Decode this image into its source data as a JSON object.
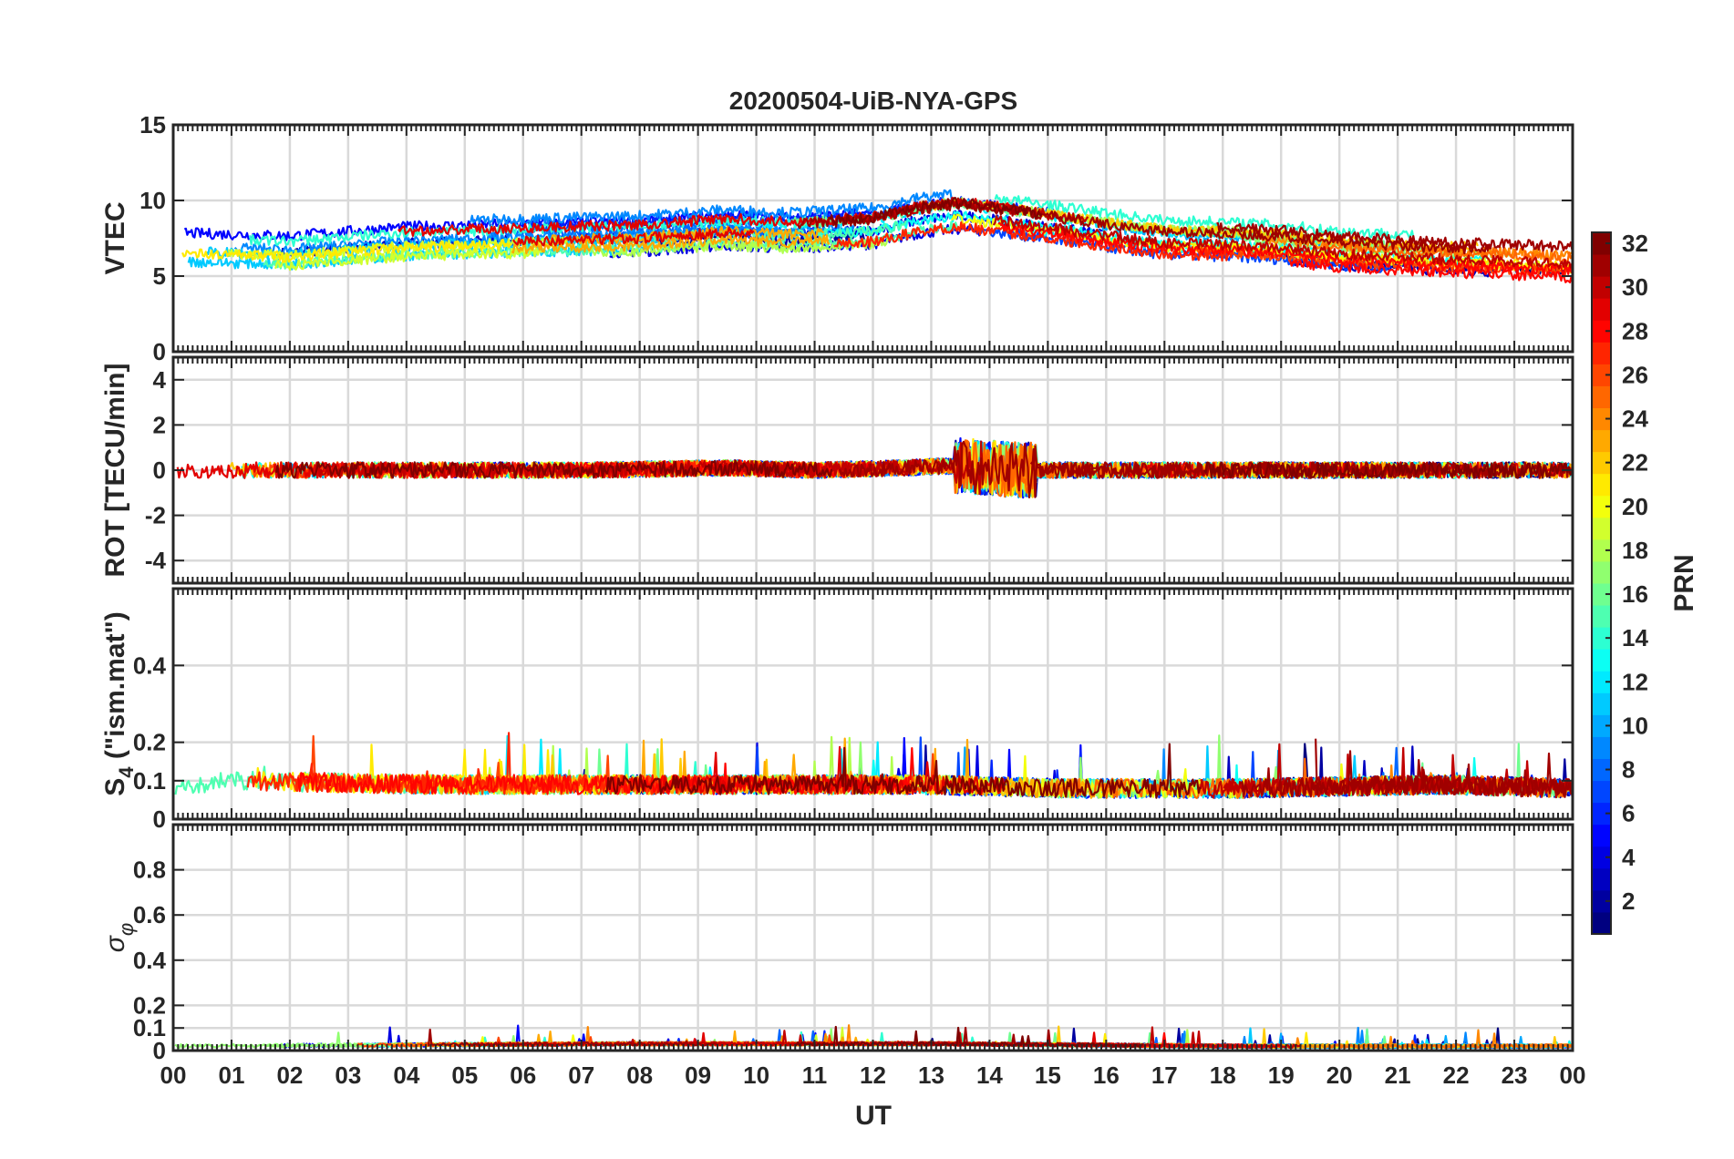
{
  "chart_data": {
    "type": "line",
    "title": "20200504-UiB-NYA-GPS",
    "xlabel": "UT",
    "x_ticks": [
      "00",
      "01",
      "02",
      "03",
      "04",
      "05",
      "06",
      "07",
      "08",
      "09",
      "10",
      "11",
      "12",
      "13",
      "14",
      "15",
      "16",
      "17",
      "18",
      "19",
      "20",
      "21",
      "22",
      "23",
      "00"
    ],
    "xlim_hours": [
      0,
      24
    ],
    "grid": true,
    "panels": [
      {
        "ylabel": "VTEC",
        "ylim": [
          0,
          15
        ],
        "yticks": [
          0,
          5,
          10,
          15
        ],
        "series_profile": {
          "x_hours": [
            0,
            2,
            4,
            6,
            8,
            9.5,
            10.5,
            12,
            12.8,
            13.5,
            14.5,
            16,
            17,
            18,
            19,
            20,
            21,
            22,
            23,
            24
          ],
          "values": [
            7.0,
            6.8,
            7.4,
            7.6,
            7.8,
            8.2,
            8.0,
            8.3,
            9.0,
            9.3,
            8.8,
            8.0,
            7.5,
            7.4,
            7.2,
            6.8,
            6.6,
            6.4,
            6.3,
            6.1
          ]
        }
      },
      {
        "ylabel": "ROT [TECU/min]",
        "ylim": [
          -5,
          5
        ],
        "yticks": [
          -4,
          -2,
          0,
          2,
          4
        ],
        "series_profile": {
          "x_hours": [
            0,
            3,
            7,
            9.5,
            11,
            12.5,
            13.5,
            14.5,
            15,
            18.4,
            21.7,
            24
          ],
          "values": [
            0.0,
            0.0,
            0.0,
            0.1,
            0.0,
            0.1,
            0.2,
            0.0,
            0.0,
            0.0,
            0.0,
            0.0
          ]
        }
      },
      {
        "ylabel": "S4 (\"ism.mat\")",
        "ylabel_main": "S",
        "ylabel_sub": "4",
        "ylabel_rest": " (\"ism.mat\")",
        "ylim": [
          0,
          0.6
        ],
        "yticks": [
          0,
          0.1,
          0.2,
          0.4
        ],
        "ytick_labels": [
          "0",
          "0.1",
          "0.2",
          "0.4"
        ],
        "series_profile": {
          "x_hours": [
            0,
            1,
            4.4,
            7.4,
            9.3,
            12.8,
            15.3,
            18.3,
            21.8,
            24
          ],
          "values": [
            0.08,
            0.1,
            0.09,
            0.09,
            0.09,
            0.09,
            0.08,
            0.08,
            0.09,
            0.08
          ]
        }
      },
      {
        "ylabel": "σφ",
        "ylabel_main": "σ",
        "ylabel_sub": "φ",
        "ylim": [
          0,
          1
        ],
        "yticks": [
          0,
          0.1,
          0.2,
          0.4,
          0.6,
          0.8
        ],
        "ytick_labels": [
          "0",
          "0.1",
          "0.2",
          "0.4",
          "0.6",
          "0.8"
        ],
        "series_profile": {
          "x_hours": [
            0,
            7.7,
            11.3,
            13.2,
            18,
            24
          ],
          "values": [
            0.02,
            0.03,
            0.03,
            0.03,
            0.02,
            0.02
          ]
        }
      }
    ],
    "colorbar": {
      "label": "PRN",
      "range": [
        1,
        32
      ],
      "ticks": [
        2,
        4,
        6,
        8,
        10,
        12,
        14,
        16,
        18,
        20,
        22,
        24,
        26,
        28,
        30,
        32
      ],
      "colormap": "jet"
    }
  }
}
